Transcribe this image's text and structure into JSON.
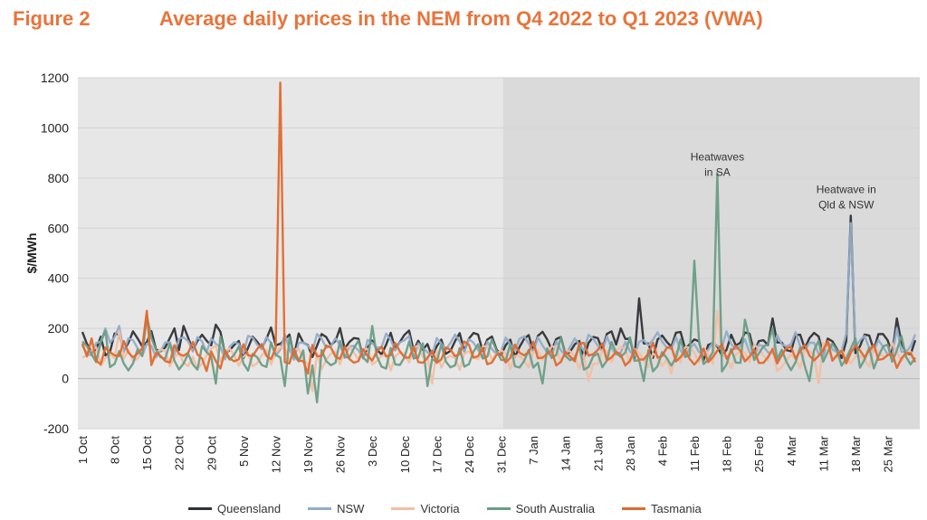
{
  "figure_label": "Figure 2",
  "title": "Average daily prices in the NEM from Q4 2022 to Q1 2023 (VWA)",
  "chart_data": {
    "type": "line",
    "ylabel": "$/MWh",
    "ylim": [
      -200,
      1200
    ],
    "yticks": [
      -200,
      0,
      200,
      400,
      600,
      800,
      1000,
      1200
    ],
    "xticklabels": [
      "1 Oct",
      "8 Oct",
      "15 Oct",
      "22 Oct",
      "29 Oct",
      "5 Nov",
      "12 Nov",
      "19 Nov",
      "26 Nov",
      "3 Dec",
      "10 Dec",
      "17 Dec",
      "24 Dec",
      "31 Dec",
      "7 Jan",
      "14 Jan",
      "21 Jan",
      "28 Jan",
      "4 Feb",
      "11 Feb",
      "18 Feb",
      "25 Feb",
      "4 Mar",
      "11 Mar",
      "18 Mar",
      "25 Mar"
    ],
    "xtick_days": [
      0,
      7,
      14,
      21,
      28,
      35,
      42,
      49,
      56,
      63,
      70,
      77,
      84,
      91,
      98,
      105,
      112,
      119,
      126,
      133,
      140,
      147,
      154,
      161,
      168,
      175
    ],
    "num_days": 182,
    "shaded_from_day": 92,
    "annotations": [
      {
        "lines": [
          "Heatwaves",
          "in SA"
        ],
        "day": 138,
        "value": 870
      },
      {
        "lines": [
          "Heatwave in",
          "Qld & NSW"
        ],
        "day": 166,
        "value": 740
      }
    ],
    "series": [
      {
        "name": "Queensland",
        "color": "#2f3236",
        "base": 140,
        "noise": 35,
        "phase": 1.3,
        "spikes": [
          [
            7,
            180
          ],
          [
            12,
            160
          ],
          [
            20,
            200
          ],
          [
            22,
            210
          ],
          [
            26,
            175
          ],
          [
            29,
            215
          ],
          [
            47,
            180
          ],
          [
            53,
            165
          ],
          [
            55,
            150
          ],
          [
            66,
            135
          ],
          [
            74,
            115
          ],
          [
            117,
            200
          ],
          [
            121,
            320
          ],
          [
            140,
            115
          ],
          [
            150,
            240
          ],
          [
            167,
            650
          ],
          [
            177,
            240
          ]
        ]
      },
      {
        "name": "NSW",
        "color": "#92acc8",
        "base": 130,
        "noise": 30,
        "phase": 2.1,
        "spikes": [
          [
            5,
            200
          ],
          [
            8,
            210
          ],
          [
            28,
            160
          ],
          [
            44,
            175
          ],
          [
            71,
            170
          ],
          [
            124,
            155
          ],
          [
            136,
            115
          ],
          [
            167,
            620
          ],
          [
            170,
            170
          ],
          [
            177,
            200
          ]
        ]
      },
      {
        "name": "Victoria",
        "color": "#f2bfa3",
        "base": 90,
        "noise": 30,
        "phase": 3.7,
        "spikes": [
          [
            8,
            190
          ],
          [
            14,
            240
          ],
          [
            25,
            40
          ],
          [
            50,
            -50
          ],
          [
            76,
            -20
          ],
          [
            110,
            -10
          ],
          [
            128,
            20
          ],
          [
            138,
            270
          ],
          [
            151,
            30
          ],
          [
            160,
            -20
          ],
          [
            167,
            60
          ]
        ]
      },
      {
        "name": "South Australia",
        "color": "#6a9d86",
        "base": 90,
        "noise": 40,
        "phase": 0.6,
        "spikes": [
          [
            5,
            190
          ],
          [
            11,
            60
          ],
          [
            14,
            250
          ],
          [
            22,
            60
          ],
          [
            29,
            -20
          ],
          [
            44,
            -30
          ],
          [
            49,
            -60
          ],
          [
            51,
            -95
          ],
          [
            63,
            210
          ],
          [
            75,
            -30
          ],
          [
            100,
            -20
          ],
          [
            122,
            -10
          ],
          [
            133,
            470
          ],
          [
            138,
            820
          ],
          [
            144,
            235
          ],
          [
            150,
            200
          ],
          [
            158,
            -10
          ],
          [
            168,
            160
          ],
          [
            178,
            170
          ]
        ]
      },
      {
        "name": "Tasmania",
        "color": "#e0692d",
        "base": 95,
        "noise": 28,
        "phase": 4.9,
        "spikes": [
          [
            0,
            140
          ],
          [
            2,
            160
          ],
          [
            14,
            270
          ],
          [
            27,
            30
          ],
          [
            30,
            40
          ],
          [
            43,
            1180
          ],
          [
            49,
            20
          ],
          [
            62,
            90
          ],
          [
            84,
            135
          ],
          [
            108,
            140
          ],
          [
            126,
            90
          ],
          [
            162,
            150
          ],
          [
            166,
            60
          ],
          [
            176,
            100
          ]
        ]
      }
    ]
  }
}
